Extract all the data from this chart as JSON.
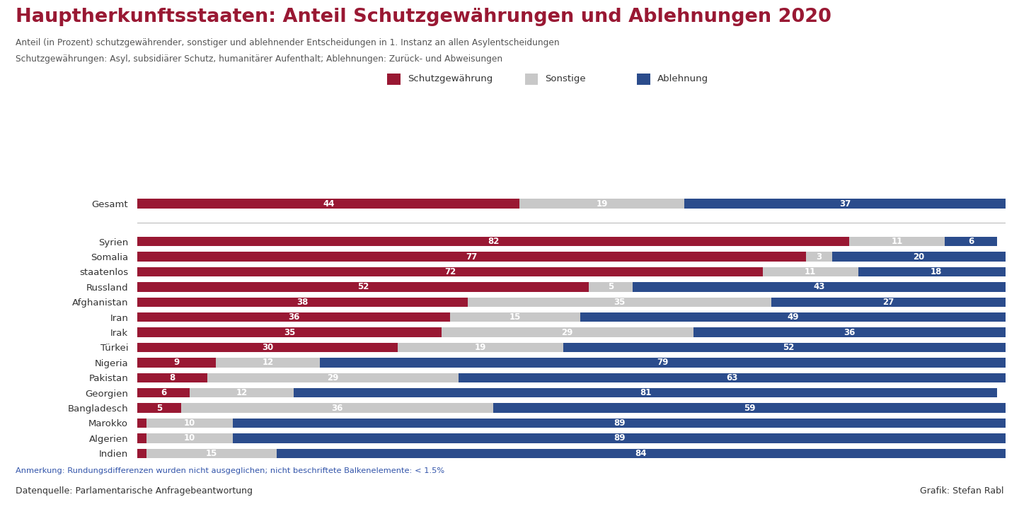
{
  "title": "Hauptherkunftsstaaten: Anteil Schutzgewährungen und Ablehnungen 2020",
  "subtitle_line1": "Anteil (in Prozent) schutzgewährender, sonstiger und ablehnender Entscheidungen in 1. Instanz an allen Asylentscheidungen",
  "subtitle_line2": "Schutzgewährungen: Asyl, subsidiärer Schutz, humanitärer Aufenthalt; Ablehnungen: Zurück- und Abweisungen",
  "legend_labels": [
    "Schutzgewährung",
    "Sonstige",
    "Ablehnung"
  ],
  "colors": {
    "schutz": "#991833",
    "sonstige": "#C8C8C8",
    "ablehnung": "#2B4C8C",
    "title": "#991833",
    "subtitle": "#555555",
    "background": "#FFFFFF",
    "footer_bg": "#CCCCCC",
    "border": "#991833",
    "annotation": "#3355AA"
  },
  "gesamt": {
    "label": "Gesamt",
    "schutz": 44,
    "sonstige": 19,
    "ablehnung": 37
  },
  "categories": [
    {
      "label": "Syrien",
      "schutz": 82,
      "sonstige": 11,
      "ablehnung": 6
    },
    {
      "label": "Somalia",
      "schutz": 77,
      "sonstige": 3,
      "ablehnung": 20
    },
    {
      "label": "staatenlos",
      "schutz": 72,
      "sonstige": 11,
      "ablehnung": 18
    },
    {
      "label": "Russland",
      "schutz": 52,
      "sonstige": 5,
      "ablehnung": 43
    },
    {
      "label": "Afghanistan",
      "schutz": 38,
      "sonstige": 35,
      "ablehnung": 27
    },
    {
      "label": "Iran",
      "schutz": 36,
      "sonstige": 15,
      "ablehnung": 49
    },
    {
      "label": "Irak",
      "schutz": 35,
      "sonstige": 29,
      "ablehnung": 36
    },
    {
      "label": "Türkei",
      "schutz": 30,
      "sonstige": 19,
      "ablehnung": 52
    },
    {
      "label": "Nigeria",
      "schutz": 9,
      "sonstige": 12,
      "ablehnung": 79
    },
    {
      "label": "Pakistan",
      "schutz": 8,
      "sonstige": 29,
      "ablehnung": 63
    },
    {
      "label": "Georgien",
      "schutz": 6,
      "sonstige": 12,
      "ablehnung": 81
    },
    {
      "label": "Bangladesch",
      "schutz": 5,
      "sonstige": 36,
      "ablehnung": 59
    },
    {
      "label": "Marokko",
      "schutz": 1,
      "sonstige": 10,
      "ablehnung": 89
    },
    {
      "label": "Algerien",
      "schutz": 1,
      "sonstige": 10,
      "ablehnung": 89
    },
    {
      "label": "Indien",
      "schutz": 1,
      "sonstige": 15,
      "ablehnung": 84
    }
  ],
  "footer_left": "Datenquelle: Parlamentarische Anfragebeantwortung",
  "footer_right": "Grafik: Stefan Rabl",
  "annotation": "Anmerkung: Rundungsdifferenzen wurden nicht ausgeglichen; nicht beschriftete Balkenelemente: < 1.5%",
  "label_threshold": 1.5
}
